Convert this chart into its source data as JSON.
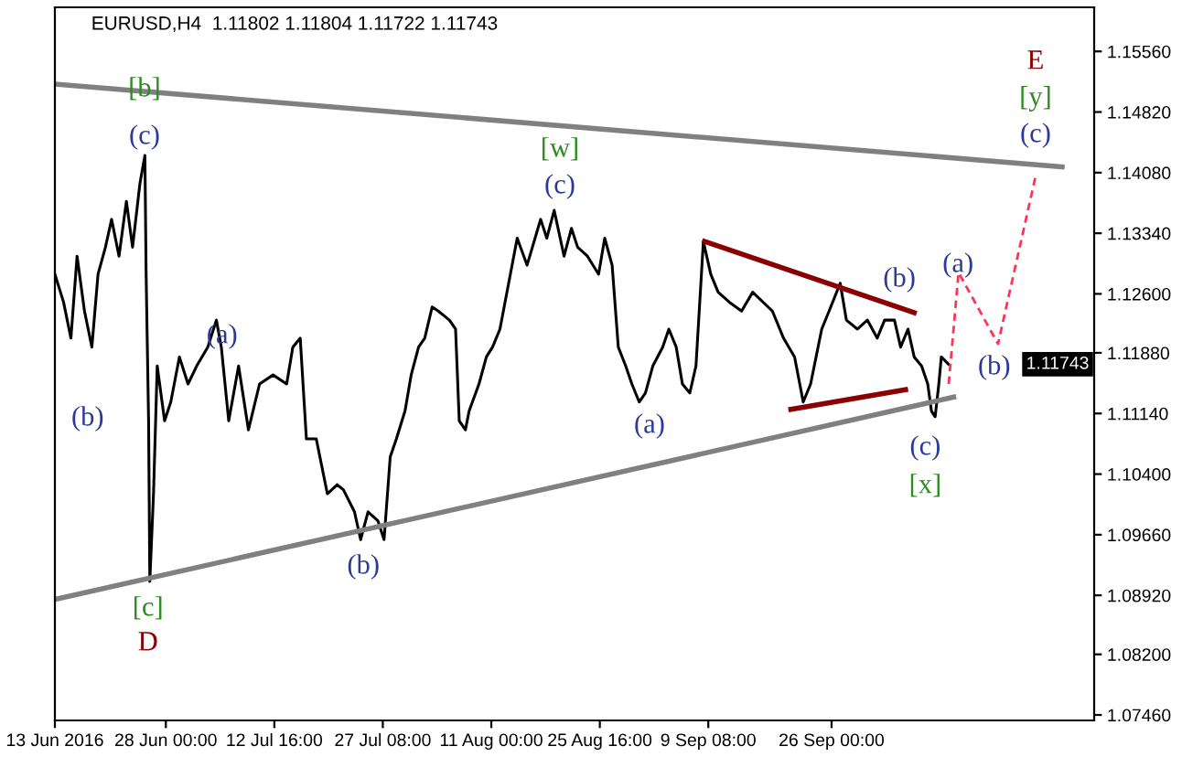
{
  "chart_data": {
    "type": "line",
    "title": "EURUSD,H4  1.11802 1.11804 1.11722 1.11743",
    "xlim": [
      "2016-06-13T00:00",
      "2016-10-31T12:00"
    ],
    "ylim": [
      1.07393,
      1.16098
    ],
    "xticks": [
      {
        "value": "2016-06-13T00:00",
        "label": "13 Jun 2016"
      },
      {
        "value": "2016-06-28T00:00",
        "label": "28 Jun 00:00"
      },
      {
        "value": "2016-07-12T16:00",
        "label": "12 Jul 16:00"
      },
      {
        "value": "2016-07-27T08:00",
        "label": "27 Jul 08:00"
      },
      {
        "value": "2016-08-11T00:00",
        "label": "11 Aug 00:00"
      },
      {
        "value": "2016-08-25T16:00",
        "label": "25 Aug 16:00"
      },
      {
        "value": "2016-09-09T08:00",
        "label": "9 Sep 08:00"
      },
      {
        "value": "2016-09-26T00:00",
        "label": "26 Sep 00:00"
      }
    ],
    "yticks": [
      {
        "value": 1.0746,
        "label": "1.07460"
      },
      {
        "value": 1.082,
        "label": "1.08200"
      },
      {
        "value": 1.0892,
        "label": "1.08920"
      },
      {
        "value": 1.0966,
        "label": "1.09660"
      },
      {
        "value": 1.104,
        "label": "1.10400"
      },
      {
        "value": 1.1114,
        "label": "1.11140"
      },
      {
        "value": 1.1188,
        "label": "1.11880"
      },
      {
        "value": 1.126,
        "label": "1.12600"
      },
      {
        "value": 1.1334,
        "label": "1.13340"
      },
      {
        "value": 1.1408,
        "label": "1.14080"
      },
      {
        "value": 1.1482,
        "label": "1.14820"
      },
      {
        "value": 1.1556,
        "label": "1.15560"
      }
    ],
    "series": [
      {
        "color": "#000000",
        "line_style": "solid",
        "x": [
          "2016-06-13T00:00",
          "2016-06-14T04:00",
          "2016-06-15T04:00",
          "2016-06-16T00:00",
          "2016-06-17T00:00",
          "2016-06-18T00:00",
          "2016-06-18T20:00",
          "2016-06-19T20:00",
          "2016-06-20T16:00",
          "2016-06-21T16:00",
          "2016-06-22T16:00",
          "2016-06-23T12:00",
          "2016-06-24T12:00",
          "2016-06-25T04:00",
          "2016-06-25T08:00",
          "2016-06-25T16:00",
          "2016-06-25T20:00",
          "2016-06-26T08:00",
          "2016-06-26T20:00",
          "2016-06-27T20:00",
          "2016-06-28T16:00",
          "2016-06-29T20:00",
          "2016-07-01T00:00",
          "2016-07-02T04:00",
          "2016-07-03T16:00",
          "2016-07-04T20:00",
          "2016-07-05T12:00",
          "2016-07-06T12:00",
          "2016-07-07T20:00",
          "2016-07-09T04:00",
          "2016-07-10T16:00",
          "2016-07-12T12:00",
          "2016-07-14T08:00",
          "2016-07-15T04:00",
          "2016-07-16T04:00",
          "2016-07-17T00:00",
          "2016-07-18T08:00",
          "2016-07-19T20:00",
          "2016-07-21T04:00",
          "2016-07-22T00:00",
          "2016-07-23T12:00",
          "2016-07-24T08:00",
          "2016-07-25T08:00",
          "2016-07-26T16:00",
          "2016-07-27T12:00",
          "2016-07-28T08:00",
          "2016-07-29T04:00",
          "2016-07-30T08:00",
          "2016-07-31T04:00",
          "2016-08-01T04:00",
          "2016-08-02T00:00",
          "2016-08-03T00:00",
          "2016-08-03T20:00",
          "2016-08-05T08:00",
          "2016-08-06T04:00",
          "2016-08-06T16:00",
          "2016-08-07T12:00",
          "2016-08-08T00:00",
          "2016-08-09T08:00",
          "2016-08-10T08:00",
          "2016-08-11T04:00",
          "2016-08-12T04:00",
          "2016-08-14T12:00",
          "2016-08-15T20:00",
          "2016-08-17T16:00",
          "2016-08-18T12:00",
          "2016-08-19T12:00",
          "2016-08-20T20:00",
          "2016-08-21T20:00",
          "2016-08-22T16:00",
          "2016-08-24T00:00",
          "2016-08-25T12:00",
          "2016-08-26T08:00",
          "2016-08-27T08:00",
          "2016-08-28T04:00",
          "2016-08-29T04:00",
          "2016-08-30T00:00",
          "2016-08-31T00:00",
          "2016-08-31T20:00",
          "2016-09-01T20:00",
          "2016-09-03T04:00",
          "2016-09-04T00:00",
          "2016-09-05T00:00",
          "2016-09-05T20:00",
          "2016-09-06T20:00",
          "2016-09-07T16:00",
          "2016-09-08T16:00",
          "2016-09-09T16:00",
          "2016-09-10T16:00",
          "2016-09-12T04:00",
          "2016-09-13T20:00",
          "2016-09-15T08:00",
          "2016-09-18T00:00",
          "2016-09-19T12:00",
          "2016-09-21T00:00",
          "2016-09-22T04:00",
          "2016-09-23T04:00",
          "2016-09-24T16:00",
          "2016-09-25T16:00",
          "2016-09-27T04:00",
          "2016-09-28T00:00",
          "2016-09-29T12:00",
          "2016-09-30T20:00",
          "2016-10-02T04:00",
          "2016-10-03T04:00",
          "2016-10-04T12:00",
          "2016-10-05T08:00",
          "2016-10-06T08:00",
          "2016-10-07T04:00",
          "2016-10-08T04:00",
          "2016-10-09T00:00",
          "2016-10-09T12:00",
          "2016-10-10T00:00",
          "2016-10-10T12:00",
          "2016-10-10T20:00",
          "2016-10-11T20:00"
        ],
        "values": [
          1.1284,
          1.125,
          1.1206,
          1.1306,
          1.1239,
          1.1195,
          1.1284,
          1.1317,
          1.1351,
          1.1306,
          1.1373,
          1.1317,
          1.1395,
          1.1429,
          1.1284,
          1.1105,
          1.0909,
          1.1016,
          1.1172,
          1.1105,
          1.1128,
          1.1183,
          1.115,
          1.1172,
          1.1195,
          1.1228,
          1.1195,
          1.1105,
          1.1172,
          1.1094,
          1.115,
          1.1161,
          1.115,
          1.1195,
          1.1206,
          1.1083,
          1.1083,
          1.1016,
          1.1027,
          1.1021,
          1.0994,
          1.096,
          1.0994,
          1.0983,
          1.096,
          1.1061,
          1.1083,
          1.1117,
          1.1161,
          1.1195,
          1.1206,
          1.1244,
          1.1239,
          1.1228,
          1.1217,
          1.1105,
          1.1094,
          1.1117,
          1.115,
          1.1183,
          1.1195,
          1.1217,
          1.1328,
          1.1295,
          1.1351,
          1.1328,
          1.1362,
          1.1306,
          1.134,
          1.1317,
          1.1306,
          1.1284,
          1.1328,
          1.1295,
          1.1195,
          1.1172,
          1.115,
          1.1128,
          1.1139,
          1.1172,
          1.1195,
          1.1217,
          1.1195,
          1.115,
          1.1139,
          1.1172,
          1.1324,
          1.1284,
          1.1262,
          1.125,
          1.1239,
          1.1262,
          1.1239,
          1.1206,
          1.1183,
          1.1128,
          1.115,
          1.1217,
          1.1239,
          1.1273,
          1.1228,
          1.1217,
          1.1228,
          1.1206,
          1.1228,
          1.1228,
          1.1195,
          1.1217,
          1.1183,
          1.1172,
          1.115,
          1.1117,
          1.111,
          1.115,
          1.1183,
          1.1174
        ]
      },
      {
        "color": "#808080",
        "line_style": "solid",
        "x": [
          "2016-06-13T00:00",
          "2016-10-27T04:00"
        ],
        "values": [
          1.1516,
          1.1415
        ]
      },
      {
        "color": "#808080",
        "line_style": "solid",
        "x": [
          "2016-06-13T00:00",
          "2016-10-12T12:00"
        ],
        "values": [
          1.0887,
          1.1134
        ]
      },
      {
        "color": "#8b0000",
        "line_style": "solid",
        "x": [
          "2016-09-08T20:00",
          "2016-10-07T04:00"
        ],
        "values": [
          1.1324,
          1.1237
        ]
      },
      {
        "color": "#8b0000",
        "line_style": "solid",
        "x": [
          "2016-09-20T12:00",
          "2016-10-06T00:00"
        ],
        "values": [
          1.1119,
          1.1143
        ]
      },
      {
        "color": "#ff3355",
        "line_style": "dashed",
        "x": [
          "2016-10-11T20:00",
          "2016-10-13T04:00",
          "2016-10-18T12:00",
          "2016-10-23T16:00"
        ],
        "values": [
          1.115,
          1.1286,
          1.1199,
          1.1407
        ]
      }
    ],
    "annotations": [
      "1.11743",
      "[b]",
      "(c)",
      "(b)",
      "(a)",
      "[c]",
      "D",
      "(b)",
      "[w]",
      "(c)",
      "(a)",
      "(b)",
      "(c)",
      "[x]",
      "(a)",
      "(b)",
      "E",
      "[y]",
      "(c)"
    ]
  }
}
